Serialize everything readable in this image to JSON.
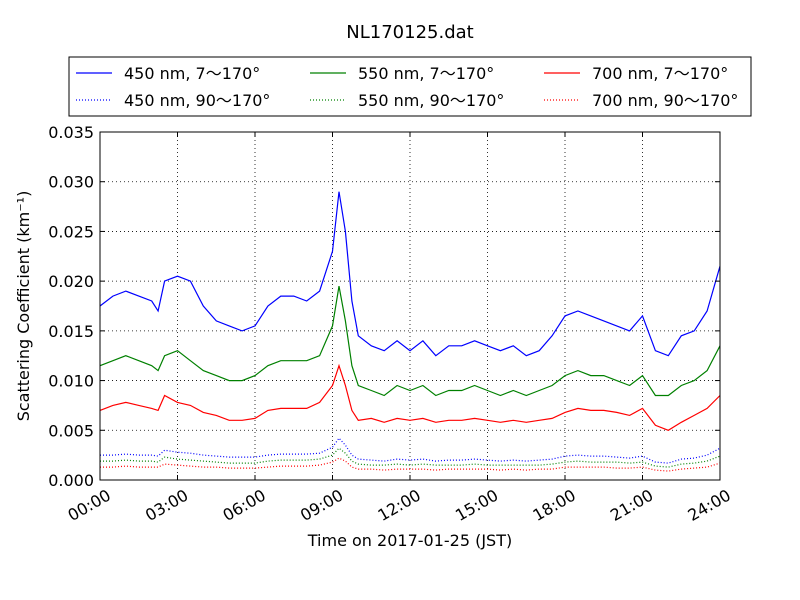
{
  "chart_data": {
    "type": "line",
    "title": "NL170125.dat",
    "xlabel": "Time on 2017-01-25 (JST)",
    "ylabel": "Scattering Coefficient (km⁻¹)",
    "xlim": [
      "00:00",
      "24:00"
    ],
    "ylim": [
      0,
      0.035
    ],
    "grid": true,
    "legend_position": "top",
    "x_ticks": [
      "00:00",
      "03:00",
      "06:00",
      "09:00",
      "12:00",
      "15:00",
      "18:00",
      "21:00",
      "24:00"
    ],
    "y_ticks": [
      "0.000",
      "0.005",
      "0.010",
      "0.015",
      "0.020",
      "0.025",
      "0.030",
      "0.035"
    ],
    "x": [
      "00:00",
      "00:30",
      "01:00",
      "01:30",
      "02:00",
      "02:15",
      "02:30",
      "03:00",
      "03:30",
      "04:00",
      "04:30",
      "05:00",
      "05:30",
      "06:00",
      "06:30",
      "07:00",
      "07:30",
      "08:00",
      "08:30",
      "09:00",
      "09:15",
      "09:30",
      "09:45",
      "10:00",
      "10:30",
      "11:00",
      "11:30",
      "12:00",
      "12:30",
      "13:00",
      "13:30",
      "14:00",
      "14:30",
      "15:00",
      "15:30",
      "16:00",
      "16:30",
      "17:00",
      "17:30",
      "18:00",
      "18:30",
      "19:00",
      "19:30",
      "20:00",
      "20:30",
      "21:00",
      "21:30",
      "22:00",
      "22:30",
      "23:00",
      "23:30",
      "24:00"
    ],
    "series": [
      {
        "name": "450 nm, 7～170°",
        "color": "#0000ff",
        "style": "solid",
        "values": [
          0.0175,
          0.0185,
          0.019,
          0.0185,
          0.018,
          0.017,
          0.02,
          0.0205,
          0.02,
          0.0175,
          0.016,
          0.0155,
          0.015,
          0.0155,
          0.0175,
          0.0185,
          0.0185,
          0.018,
          0.019,
          0.023,
          0.029,
          0.025,
          0.018,
          0.0145,
          0.0135,
          0.013,
          0.014,
          0.013,
          0.014,
          0.0125,
          0.0135,
          0.0135,
          0.014,
          0.0135,
          0.013,
          0.0135,
          0.0125,
          0.013,
          0.0145,
          0.0165,
          0.017,
          0.0165,
          0.016,
          0.0155,
          0.015,
          0.0165,
          0.013,
          0.0125,
          0.0145,
          0.015,
          0.017,
          0.0215
        ]
      },
      {
        "name": "550 nm, 7～170°",
        "color": "#008000",
        "style": "solid",
        "values": [
          0.0115,
          0.012,
          0.0125,
          0.012,
          0.0115,
          0.011,
          0.0125,
          0.013,
          0.012,
          0.011,
          0.0105,
          0.01,
          0.01,
          0.0105,
          0.0115,
          0.012,
          0.012,
          0.012,
          0.0125,
          0.0155,
          0.0195,
          0.016,
          0.0115,
          0.0095,
          0.009,
          0.0085,
          0.0095,
          0.009,
          0.0095,
          0.0085,
          0.009,
          0.009,
          0.0095,
          0.009,
          0.0085,
          0.009,
          0.0085,
          0.009,
          0.0095,
          0.0105,
          0.011,
          0.0105,
          0.0105,
          0.01,
          0.0095,
          0.0105,
          0.0085,
          0.0085,
          0.0095,
          0.01,
          0.011,
          0.0135
        ]
      },
      {
        "name": "700 nm, 7～170°",
        "color": "#ff0000",
        "style": "solid",
        "values": [
          0.007,
          0.0075,
          0.0078,
          0.0075,
          0.0072,
          0.007,
          0.0085,
          0.0078,
          0.0075,
          0.0068,
          0.0065,
          0.006,
          0.006,
          0.0062,
          0.007,
          0.0072,
          0.0072,
          0.0072,
          0.0078,
          0.0095,
          0.0115,
          0.0095,
          0.007,
          0.006,
          0.0062,
          0.0058,
          0.0062,
          0.006,
          0.0062,
          0.0058,
          0.006,
          0.006,
          0.0062,
          0.006,
          0.0058,
          0.006,
          0.0058,
          0.006,
          0.0062,
          0.0068,
          0.0072,
          0.007,
          0.007,
          0.0068,
          0.0065,
          0.0072,
          0.0055,
          0.005,
          0.0058,
          0.0065,
          0.0072,
          0.0085
        ]
      },
      {
        "name": "450 nm, 90～170°",
        "color": "#0000ff",
        "style": "dotted",
        "values": [
          0.0025,
          0.0025,
          0.0026,
          0.0025,
          0.0025,
          0.0024,
          0.003,
          0.0028,
          0.0027,
          0.0025,
          0.0024,
          0.0023,
          0.0023,
          0.0023,
          0.0025,
          0.0026,
          0.0026,
          0.0026,
          0.0027,
          0.0033,
          0.0042,
          0.0035,
          0.0025,
          0.0021,
          0.002,
          0.0019,
          0.0021,
          0.002,
          0.0021,
          0.0019,
          0.002,
          0.002,
          0.0021,
          0.002,
          0.0019,
          0.002,
          0.0019,
          0.002,
          0.0021,
          0.0024,
          0.0025,
          0.0024,
          0.0024,
          0.0023,
          0.0022,
          0.0024,
          0.0018,
          0.0017,
          0.0021,
          0.0022,
          0.0025,
          0.0032
        ]
      },
      {
        "name": "550 nm, 90～170°",
        "color": "#008000",
        "style": "dotted",
        "values": [
          0.0019,
          0.0019,
          0.002,
          0.0019,
          0.0019,
          0.0018,
          0.0023,
          0.0021,
          0.002,
          0.0019,
          0.0018,
          0.0017,
          0.0017,
          0.0017,
          0.0019,
          0.002,
          0.002,
          0.002,
          0.0021,
          0.0025,
          0.0032,
          0.0027,
          0.0019,
          0.0016,
          0.0015,
          0.0015,
          0.0016,
          0.0015,
          0.0016,
          0.0015,
          0.0015,
          0.0015,
          0.0016,
          0.0015,
          0.0015,
          0.0015,
          0.0015,
          0.0015,
          0.0016,
          0.0018,
          0.0019,
          0.0018,
          0.0018,
          0.0018,
          0.0017,
          0.0018,
          0.0014,
          0.0013,
          0.0016,
          0.0017,
          0.0019,
          0.0024
        ]
      },
      {
        "name": "700 nm, 90～170°",
        "color": "#ff0000",
        "style": "dotted",
        "values": [
          0.0013,
          0.0013,
          0.0014,
          0.0013,
          0.0013,
          0.0013,
          0.0016,
          0.0015,
          0.0014,
          0.0013,
          0.0013,
          0.0012,
          0.0012,
          0.0012,
          0.0013,
          0.0014,
          0.0014,
          0.0014,
          0.0015,
          0.0018,
          0.0022,
          0.0019,
          0.0013,
          0.0011,
          0.0011,
          0.001,
          0.0011,
          0.0011,
          0.0011,
          0.001,
          0.0011,
          0.0011,
          0.0011,
          0.0011,
          0.001,
          0.0011,
          0.001,
          0.0011,
          0.0011,
          0.0013,
          0.0013,
          0.0013,
          0.0013,
          0.0012,
          0.0012,
          0.0013,
          0.001,
          0.0009,
          0.0011,
          0.0012,
          0.0013,
          0.0017
        ]
      }
    ]
  }
}
